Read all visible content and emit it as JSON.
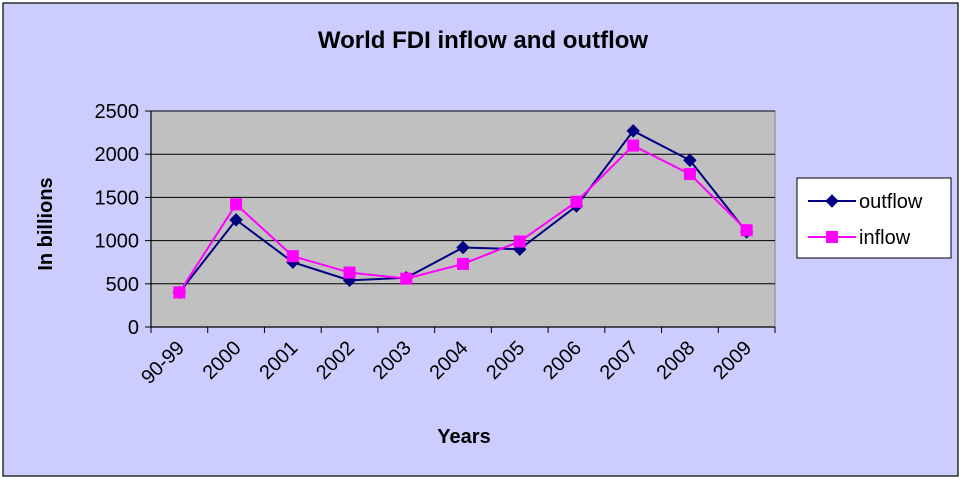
{
  "chart_data": {
    "type": "line",
    "title": "World FDI inflow and outflow",
    "xlabel": "Years",
    "ylabel": "In billions",
    "categories": [
      "90-99",
      "2000",
      "2001",
      "2002",
      "2003",
      "2004",
      "2005",
      "2006",
      "2007",
      "2008",
      "2009"
    ],
    "ylim": [
      0,
      2500
    ],
    "yticks": [
      0,
      500,
      1000,
      1500,
      2000,
      2500
    ],
    "grid": true,
    "legend_position": "right",
    "series": [
      {
        "name": "outflow",
        "marker": "diamond",
        "color": "#000080",
        "values": [
          400,
          1240,
          750,
          540,
          570,
          920,
          900,
          1400,
          2270,
          1930,
          1100
        ]
      },
      {
        "name": "inflow",
        "marker": "square",
        "color": "#ff00ff",
        "values": [
          400,
          1420,
          820,
          630,
          560,
          730,
          990,
          1450,
          2100,
          1770,
          1120
        ]
      }
    ]
  },
  "style": {
    "chart_area_bg": "#ccccff",
    "plot_area_bg": "#c0c0c0",
    "gridline_color": "#000000",
    "axis_color": "#000000"
  }
}
